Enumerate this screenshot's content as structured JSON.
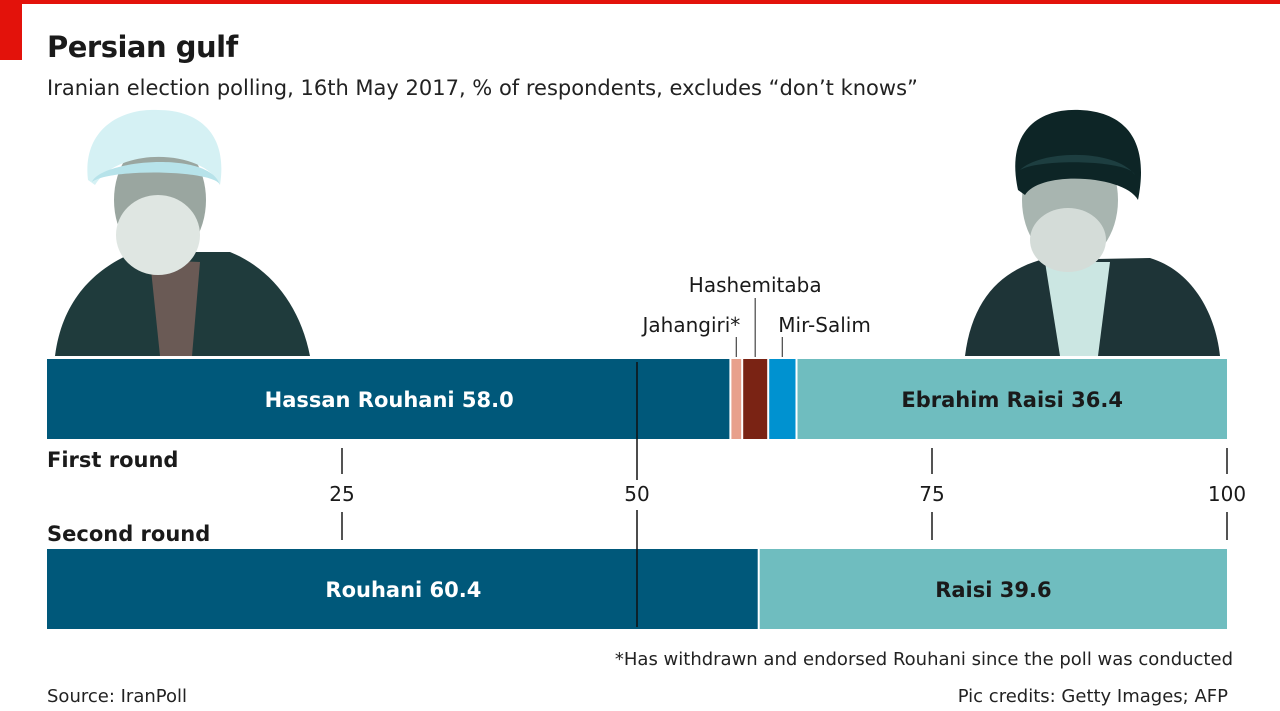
{
  "header": {
    "title": "Persian gulf",
    "subtitle": "Iranian election polling, 16th May 2017, % of respondents, excludes “don’t knows”"
  },
  "footer": {
    "footnote": "*Has withdrawn and endorsed Rouhani since the poll was conducted",
    "source": "Source: IranPoll",
    "credits": "Pic credits: Getty Images; AFP"
  },
  "colors": {
    "rouhani": "#00587a",
    "jahangiri": "#e8a08c",
    "hashemitaba": "#7a2314",
    "mirsalim": "#0092d0",
    "raisi": "#6fbdbf",
    "accent": "#e3120b"
  },
  "chart_data": {
    "type": "bar",
    "orientation": "horizontal",
    "stacked": true,
    "xlim": [
      0,
      100
    ],
    "ticks": [
      25,
      50,
      75,
      100
    ],
    "reference_line": 50,
    "rounds": [
      {
        "label": "First round",
        "segments": [
          {
            "name": "Hassan Rouhani",
            "value": 58.0,
            "label": "Hassan Rouhani 58.0",
            "color_key": "rouhani",
            "label_color": "#ffffff"
          },
          {
            "name": "Jahangiri*",
            "value": 1.0,
            "label": "Jahangiri*",
            "color_key": "jahangiri",
            "callout": true
          },
          {
            "name": "Hashemitaba",
            "value": 2.2,
            "label": "Hashemitaba",
            "color_key": "hashemitaba",
            "callout": true
          },
          {
            "name": "Mir-Salim",
            "value": 2.4,
            "label": "Mir-Salim",
            "color_key": "mirsalim",
            "callout": true
          },
          {
            "name": "Ebrahim Raisi",
            "value": 36.4,
            "label": "Ebrahim Raisi 36.4",
            "color_key": "raisi",
            "label_color": "#1a1a1a"
          }
        ]
      },
      {
        "label": "Second round",
        "segments": [
          {
            "name": "Rouhani",
            "value": 60.4,
            "label": "Rouhani 60.4",
            "color_key": "rouhani",
            "label_color": "#ffffff"
          },
          {
            "name": "Raisi",
            "value": 39.6,
            "label": "Raisi 39.6",
            "color_key": "raisi",
            "label_color": "#1a1a1a"
          }
        ]
      }
    ]
  }
}
